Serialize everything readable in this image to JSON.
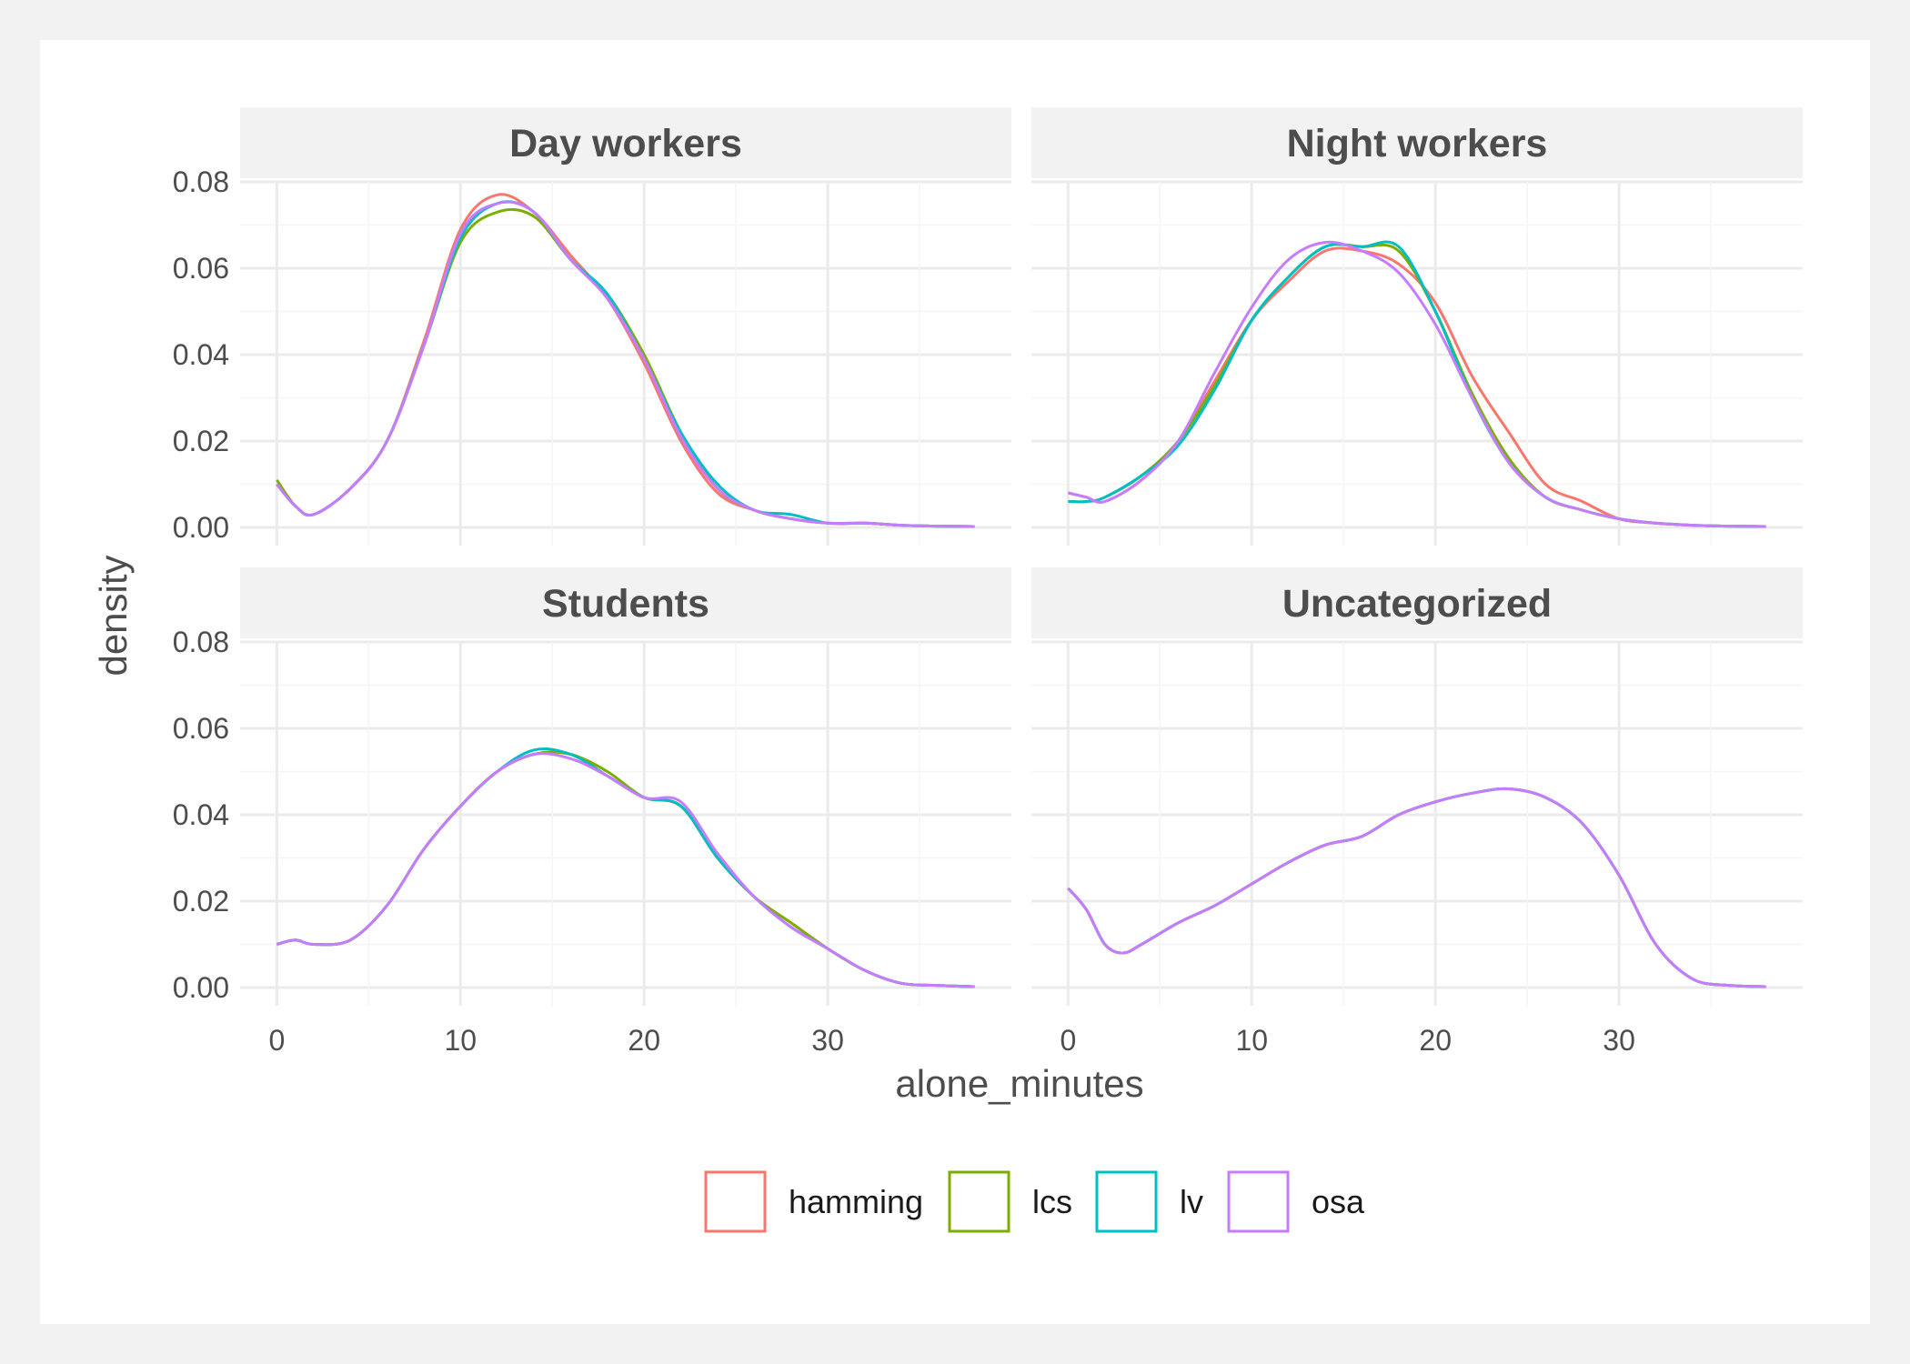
{
  "chart_data": {
    "type": "line",
    "subtype": "faceted density",
    "xlabel": "alone_minutes",
    "ylabel": "density",
    "xlim": [
      -2,
      40
    ],
    "ylim": [
      0,
      0.08
    ],
    "x_ticks": [
      0,
      10,
      20,
      30
    ],
    "x_tick_labels": [
      "0",
      "10",
      "20",
      "30"
    ],
    "y_ticks": [
      0,
      0.02,
      0.04,
      0.06,
      0.08
    ],
    "y_tick_labels": [
      "0.00",
      "0.02",
      "0.04",
      "0.06",
      "0.08"
    ],
    "grid": true,
    "legend": {
      "position": "bottom",
      "entries": [
        {
          "name": "hamming",
          "color": "#F8766D"
        },
        {
          "name": "lcs",
          "color": "#7CAE00"
        },
        {
          "name": "lv",
          "color": "#00BFC4"
        },
        {
          "name": "osa",
          "color": "#C77CFF"
        }
      ]
    },
    "facets": [
      {
        "title": "Day workers",
        "series": [
          {
            "name": "hamming",
            "x": [
              0,
              1,
              2,
              4,
              6,
              8,
              10,
              12,
              14,
              16,
              18,
              20,
              22,
              24,
              26,
              28,
              30,
              32,
              34,
              36,
              38
            ],
            "y": [
              0.01,
              0.005,
              0.003,
              0.009,
              0.02,
              0.043,
              0.069,
              0.077,
              0.073,
              0.063,
              0.053,
              0.038,
              0.02,
              0.008,
              0.004,
              0.002,
              0.001,
              0.001,
              0.0005,
              0.0003,
              0.0002
            ]
          },
          {
            "name": "lcs",
            "x": [
              0,
              1,
              2,
              4,
              6,
              8,
              10,
              12,
              14,
              16,
              18,
              20,
              22,
              24,
              26,
              28,
              30,
              32,
              34,
              36,
              38
            ],
            "y": [
              0.011,
              0.005,
              0.003,
              0.009,
              0.02,
              0.042,
              0.066,
              0.073,
              0.072,
              0.062,
              0.054,
              0.04,
              0.022,
              0.009,
              0.004,
              0.002,
              0.001,
              0.001,
              0.0005,
              0.0003,
              0.0002
            ]
          },
          {
            "name": "lv",
            "x": [
              0,
              1,
              2,
              4,
              6,
              8,
              10,
              12,
              14,
              16,
              18,
              20,
              22,
              24,
              26,
              28,
              30,
              32,
              34,
              36,
              38
            ],
            "y": [
              0.01,
              0.005,
              0.003,
              0.009,
              0.02,
              0.042,
              0.067,
              0.075,
              0.073,
              0.062,
              0.054,
              0.039,
              0.022,
              0.01,
              0.004,
              0.003,
              0.001,
              0.001,
              0.0005,
              0.0003,
              0.0002
            ]
          },
          {
            "name": "osa",
            "x": [
              0,
              1,
              2,
              4,
              6,
              8,
              10,
              12,
              14,
              16,
              18,
              20,
              22,
              24,
              26,
              28,
              30,
              32,
              34,
              36,
              38
            ],
            "y": [
              0.01,
              0.005,
              0.003,
              0.009,
              0.02,
              0.042,
              0.068,
              0.075,
              0.073,
              0.062,
              0.053,
              0.039,
              0.021,
              0.009,
              0.004,
              0.002,
              0.001,
              0.001,
              0.0005,
              0.0003,
              0.0002
            ]
          }
        ]
      },
      {
        "title": "Night workers",
        "series": [
          {
            "name": "hamming",
            "x": [
              0,
              1,
              2,
              4,
              6,
              8,
              10,
              12,
              14,
              16,
              18,
              20,
              22,
              24,
              26,
              28,
              30,
              32,
              34,
              36,
              38
            ],
            "y": [
              0.008,
              0.007,
              0.006,
              0.011,
              0.02,
              0.034,
              0.048,
              0.057,
              0.064,
              0.064,
              0.061,
              0.052,
              0.035,
              0.022,
              0.01,
              0.006,
              0.002,
              0.001,
              0.0005,
              0.0003,
              0.0002
            ]
          },
          {
            "name": "lcs",
            "x": [
              0,
              1,
              2,
              4,
              6,
              8,
              10,
              12,
              14,
              16,
              18,
              20,
              22,
              24,
              26,
              28,
              30,
              32,
              34,
              36,
              38
            ],
            "y": [
              0.006,
              0.006,
              0.007,
              0.012,
              0.02,
              0.033,
              0.048,
              0.058,
              0.065,
              0.065,
              0.064,
              0.05,
              0.031,
              0.016,
              0.007,
              0.004,
              0.002,
              0.001,
              0.0005,
              0.0003,
              0.0002
            ]
          },
          {
            "name": "lv",
            "x": [
              0,
              1,
              2,
              4,
              6,
              8,
              10,
              12,
              14,
              16,
              18,
              20,
              22,
              24,
              26,
              28,
              30,
              32,
              34,
              36,
              38
            ],
            "y": [
              0.006,
              0.006,
              0.007,
              0.012,
              0.019,
              0.032,
              0.048,
              0.058,
              0.065,
              0.065,
              0.065,
              0.05,
              0.03,
              0.015,
              0.007,
              0.004,
              0.002,
              0.001,
              0.0005,
              0.0003,
              0.0002
            ]
          },
          {
            "name": "osa",
            "x": [
              0,
              1,
              2,
              4,
              6,
              8,
              10,
              12,
              14,
              16,
              18,
              20,
              22,
              24,
              26,
              28,
              30,
              32,
              34,
              36,
              38
            ],
            "y": [
              0.008,
              0.007,
              0.006,
              0.011,
              0.02,
              0.036,
              0.051,
              0.062,
              0.066,
              0.064,
              0.059,
              0.047,
              0.03,
              0.015,
              0.007,
              0.004,
              0.002,
              0.001,
              0.0005,
              0.0003,
              0.0002
            ]
          }
        ]
      },
      {
        "title": "Students",
        "series": [
          {
            "name": "hamming",
            "x": [
              0,
              1,
              2,
              4,
              6,
              8,
              10,
              12,
              14,
              16,
              18,
              20,
              22,
              24,
              26,
              28,
              30,
              32,
              34,
              36,
              38
            ],
            "y": [
              0.01,
              0.011,
              0.01,
              0.011,
              0.019,
              0.032,
              0.042,
              0.05,
              0.054,
              0.054,
              0.049,
              0.044,
              0.042,
              0.031,
              0.021,
              0.015,
              0.009,
              0.004,
              0.001,
              0.0005,
              0.0002
            ]
          },
          {
            "name": "lcs",
            "x": [
              0,
              1,
              2,
              4,
              6,
              8,
              10,
              12,
              14,
              16,
              18,
              20,
              22,
              24,
              26,
              28,
              30,
              32,
              34,
              36,
              38
            ],
            "y": [
              0.01,
              0.011,
              0.01,
              0.011,
              0.019,
              0.032,
              0.042,
              0.05,
              0.054,
              0.054,
              0.05,
              0.044,
              0.042,
              0.03,
              0.021,
              0.015,
              0.009,
              0.004,
              0.001,
              0.0005,
              0.0002
            ]
          },
          {
            "name": "lv",
            "x": [
              0,
              1,
              2,
              4,
              6,
              8,
              10,
              12,
              14,
              16,
              18,
              20,
              22,
              24,
              26,
              28,
              30,
              32,
              34,
              36,
              38
            ],
            "y": [
              0.01,
              0.011,
              0.01,
              0.011,
              0.019,
              0.032,
              0.042,
              0.05,
              0.055,
              0.054,
              0.049,
              0.044,
              0.042,
              0.03,
              0.021,
              0.014,
              0.009,
              0.004,
              0.001,
              0.0005,
              0.0002
            ]
          },
          {
            "name": "osa",
            "x": [
              0,
              1,
              2,
              4,
              6,
              8,
              10,
              12,
              14,
              16,
              18,
              20,
              22,
              24,
              26,
              28,
              30,
              32,
              34,
              36,
              38
            ],
            "y": [
              0.01,
              0.011,
              0.01,
              0.011,
              0.019,
              0.032,
              0.042,
              0.05,
              0.054,
              0.053,
              0.049,
              0.044,
              0.043,
              0.031,
              0.021,
              0.014,
              0.009,
              0.004,
              0.001,
              0.0005,
              0.0002
            ]
          }
        ]
      },
      {
        "title": "Uncategorized",
        "series": [
          {
            "name": "hamming",
            "x": [
              0,
              1,
              2,
              3,
              4,
              6,
              8,
              10,
              12,
              14,
              16,
              18,
              20,
              22,
              24,
              26,
              28,
              30,
              32,
              34,
              36,
              38
            ],
            "y": [
              0.023,
              0.018,
              0.01,
              0.008,
              0.01,
              0.015,
              0.019,
              0.024,
              0.029,
              0.033,
              0.035,
              0.04,
              0.043,
              0.045,
              0.046,
              0.044,
              0.038,
              0.026,
              0.01,
              0.002,
              0.0005,
              0.0002
            ]
          },
          {
            "name": "lcs",
            "x": [
              0,
              1,
              2,
              3,
              4,
              6,
              8,
              10,
              12,
              14,
              16,
              18,
              20,
              22,
              24,
              26,
              28,
              30,
              32,
              34,
              36,
              38
            ],
            "y": [
              0.023,
              0.018,
              0.01,
              0.008,
              0.01,
              0.015,
              0.019,
              0.024,
              0.029,
              0.033,
              0.035,
              0.04,
              0.043,
              0.045,
              0.046,
              0.044,
              0.038,
              0.026,
              0.01,
              0.002,
              0.0005,
              0.0002
            ]
          },
          {
            "name": "lv",
            "x": [
              0,
              1,
              2,
              3,
              4,
              6,
              8,
              10,
              12,
              14,
              16,
              18,
              20,
              22,
              24,
              26,
              28,
              30,
              32,
              34,
              36,
              38
            ],
            "y": [
              0.023,
              0.018,
              0.01,
              0.008,
              0.01,
              0.015,
              0.019,
              0.024,
              0.029,
              0.033,
              0.035,
              0.04,
              0.043,
              0.045,
              0.046,
              0.044,
              0.038,
              0.026,
              0.01,
              0.002,
              0.0005,
              0.0002
            ]
          },
          {
            "name": "osa",
            "x": [
              0,
              1,
              2,
              3,
              4,
              6,
              8,
              10,
              12,
              14,
              16,
              18,
              20,
              22,
              24,
              26,
              28,
              30,
              32,
              34,
              36,
              38
            ],
            "y": [
              0.023,
              0.018,
              0.01,
              0.008,
              0.01,
              0.015,
              0.019,
              0.024,
              0.029,
              0.033,
              0.035,
              0.04,
              0.043,
              0.045,
              0.046,
              0.044,
              0.038,
              0.026,
              0.01,
              0.002,
              0.0005,
              0.0002
            ]
          }
        ]
      }
    ]
  }
}
